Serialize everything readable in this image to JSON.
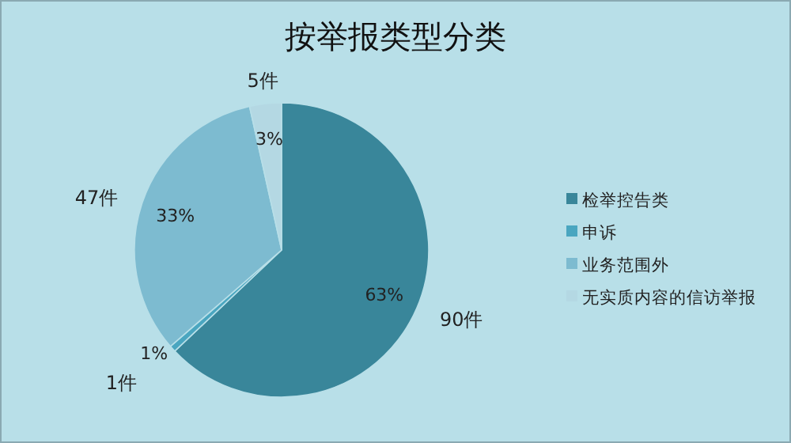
{
  "chart_data": {
    "type": "pie",
    "title": "按举报类型分类",
    "categories": [
      "检举控告类",
      "申诉",
      "业务范围外",
      "无实质内容的信访举报"
    ],
    "values": [
      90,
      1,
      47,
      5
    ],
    "value_labels": [
      "90件",
      "1件",
      "47件",
      "5件"
    ],
    "annotations": [
      "63%",
      "1%",
      "33%",
      "3%"
    ],
    "colors": [
      "#39869a",
      "#4aa6c0",
      "#7dbbd0",
      "#b4d8e3"
    ],
    "legend": "right"
  }
}
